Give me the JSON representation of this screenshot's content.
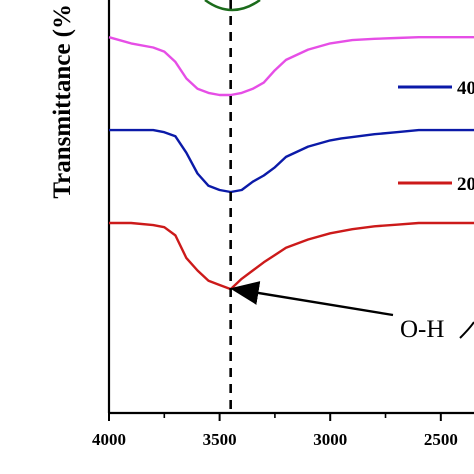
{
  "chart_data": {
    "type": "line",
    "title": "",
    "xlabel": "",
    "ylabel": "Transmittance (%",
    "xlim": [
      4000,
      2350
    ],
    "x_reversed": true,
    "x_ticks": [
      4000,
      3500,
      3000,
      2500
    ],
    "x_tick_labels": [
      "4000",
      "3500",
      "3000",
      "2500"
    ],
    "ylim": [
      0,
      100
    ],
    "y_ticks_labeled": false,
    "reference_line": {
      "x": 3450,
      "style": "dashed"
    },
    "annotation": {
      "text": "O-H",
      "points_to_x": 3450,
      "points_to_y": 30
    },
    "legend_visible_fragments": [
      {
        "text": "40",
        "color": "#0b1aa8"
      },
      {
        "text": "20",
        "color": "#cc1a1a"
      }
    ],
    "series": [
      {
        "color": "#e64ee6",
        "x": [
          4000,
          3900,
          3800,
          3750,
          3700,
          3650,
          3600,
          3550,
          3500,
          3450,
          3400,
          3350,
          3300,
          3250,
          3200,
          3100,
          3000,
          2900,
          2800,
          2700,
          2600,
          2500,
          2350
        ],
        "y": [
          91,
          89.5,
          88.5,
          87.5,
          85,
          81,
          78.5,
          77.5,
          77,
          77,
          77.5,
          78.5,
          80,
          83,
          85.5,
          88,
          89.5,
          90.3,
          90.6,
          90.8,
          91,
          91,
          91
        ]
      },
      {
        "color": "#0b1aa8",
        "x": [
          4000,
          3900,
          3800,
          3750,
          3700,
          3650,
          3600,
          3550,
          3500,
          3450,
          3400,
          3350,
          3300,
          3250,
          3200,
          3100,
          3000,
          2950,
          2900,
          2800,
          2700,
          2600,
          2500,
          2350
        ],
        "y": [
          68.5,
          68.5,
          68.5,
          68,
          67,
          63,
          58,
          55,
          54,
          53.5,
          54,
          56,
          57.5,
          59.5,
          62,
          64.5,
          66,
          66.5,
          66.8,
          67.5,
          68,
          68.5,
          68.5,
          68.5
        ]
      },
      {
        "color": "#cc1a1a",
        "x": [
          4000,
          3900,
          3800,
          3750,
          3700,
          3650,
          3600,
          3550,
          3500,
          3450,
          3400,
          3350,
          3300,
          3200,
          3100,
          3000,
          2900,
          2800,
          2700,
          2600,
          2500,
          2350
        ],
        "y": [
          46,
          46,
          45.5,
          45,
          43,
          37.5,
          34.5,
          32,
          31,
          30,
          32.5,
          34.5,
          36.5,
          40,
          42,
          43.5,
          44.5,
          45.2,
          45.6,
          46,
          46,
          46
        ]
      }
    ]
  }
}
